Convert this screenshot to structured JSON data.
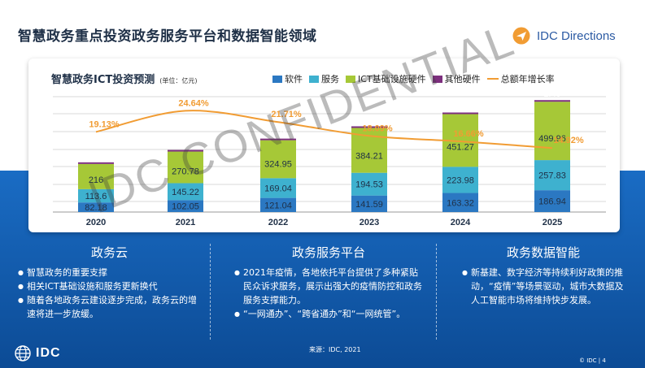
{
  "slide": {
    "title": "智慧政务重点投资政务服务平台和数据智能领域",
    "brand": "IDC Directions",
    "source": "来源：IDC, 2021",
    "footer": "© IDC |  4",
    "watermark": "IDC CONFIDENTIAL",
    "logo_text": "IDC"
  },
  "chart_data": {
    "type": "bar",
    "title": "智慧政务ICT投资预测",
    "unit": "(单位：亿元)",
    "categories": [
      "2020",
      "2021",
      "2022",
      "2023",
      "2024",
      "2025"
    ],
    "series": [
      {
        "name": "软件",
        "color": "#2b78c2",
        "values": [
          82.18,
          102.05,
          121.04,
          141.59,
          163.32,
          186.94
        ]
      },
      {
        "name": "服务",
        "color": "#3eb1cf",
        "values": [
          113.6,
          145.22,
          169.04,
          194.53,
          223.98,
          257.83
        ]
      },
      {
        "name": "ICT基础设施硬件",
        "color": "#a6c837",
        "values": [
          216,
          270.78,
          324.95,
          384.21,
          451.27,
          499.96
        ]
      },
      {
        "name": "其他硬件",
        "color": "#7d2f7e",
        "values": [
          0.74,
          0.83,
          0.98,
          1.12,
          1.27,
          1.45
        ]
      }
    ],
    "line": {
      "name": "总额年增长率",
      "color": "#f19c33",
      "values": [
        19.13,
        24.64,
        21.71,
        18.09,
        16.66,
        14.92
      ],
      "labels": [
        "19.13%",
        "24.64%",
        "21.71%",
        "18.09%",
        "16.66%",
        "14.92%"
      ]
    },
    "value_labels": [
      [
        "82.18",
        "113.6",
        "216",
        "0.74"
      ],
      [
        "102.05",
        "145.22",
        "270.78",
        "0.83"
      ],
      [
        "121.04",
        "169.04",
        "324.95",
        "0.98"
      ],
      [
        "141.59",
        "194.53",
        "384.21",
        "1.12"
      ],
      [
        "163.32",
        "223.98",
        "451.27",
        "1.27"
      ],
      [
        "186.94",
        "257.83",
        "499.96",
        "1.45"
      ]
    ],
    "grid": true,
    "legend_position": "top-right"
  },
  "panels": [
    {
      "title": "政务云",
      "items": [
        "智慧政务的重要支撑",
        "相关ICT基础设施和服务更新换代",
        "随着各地政务云建设逐步完成，政务云的增速将进一步放缓。"
      ]
    },
    {
      "title": "政务服务平台",
      "items": [
        "2021年疫情，各地依托平台提供了多种紧贴民众诉求服务，展示出强大的疫情防控和政务服务支撑能力。",
        "“一网通办”、“跨省通办”和“一网统管”。"
      ]
    },
    {
      "title": "政务数据智能",
      "items": [
        "新基建、数字经济等持续利好政策的推动，“疫情”等场景驱动，城市大数据及人工智能市场将维持快步发展。"
      ]
    }
  ]
}
